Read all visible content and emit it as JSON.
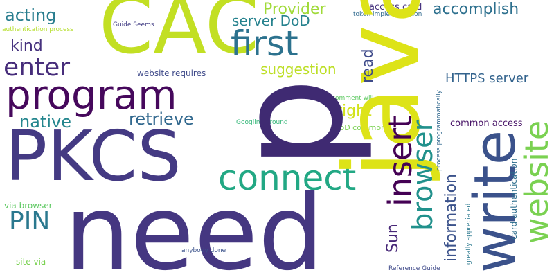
{
  "words": [
    {
      "text": "need",
      "color": "#453781"
    },
    {
      "text": "p",
      "color": "#3f2a72"
    },
    {
      "text": "CAC",
      "color": "#c2df23"
    },
    {
      "text": "java",
      "color": "#dde318"
    },
    {
      "text": "PKCS",
      "color": "#443a83"
    },
    {
      "text": "program",
      "color": "#46085c"
    },
    {
      "text": "write",
      "color": "#3b528b"
    },
    {
      "text": "first",
      "color": "#2c728e"
    },
    {
      "text": "connect",
      "color": "#22a884"
    },
    {
      "text": "website",
      "color": "#7ad151"
    },
    {
      "text": "insert",
      "color": "#440154"
    },
    {
      "text": "browser",
      "color": "#21918c"
    },
    {
      "text": "enter",
      "color": "#472d7b"
    },
    {
      "text": "acting",
      "color": "#287d8e"
    },
    {
      "text": "retrieve",
      "color": "#31688e"
    },
    {
      "text": "PIN",
      "color": "#2a788e"
    },
    {
      "text": "native",
      "color": "#24868e"
    },
    {
      "text": "kind",
      "color": "#46327e"
    },
    {
      "text": "Provider",
      "color": "#a0da39"
    },
    {
      "text": "accomplish",
      "color": "#2d708e"
    },
    {
      "text": "server DoD",
      "color": "#26828e"
    },
    {
      "text": "suggestion",
      "color": "#bddf26"
    },
    {
      "text": "read",
      "color": "#3e4a89"
    },
    {
      "text": "right",
      "color": "#d2e21b"
    },
    {
      "text": "HTTPS server",
      "color": "#33638d"
    },
    {
      "text": "Sun",
      "color": "#482878"
    },
    {
      "text": "information",
      "color": "#3b528b"
    },
    {
      "text": "common access",
      "color": "#481467"
    },
    {
      "text": "access card",
      "color": "#46327e"
    },
    {
      "text": "token implementation",
      "color": "#306a8e"
    },
    {
      "text": "authentication process",
      "color": "#b5de2b"
    },
    {
      "text": "Guide Seems",
      "color": "#433e85"
    },
    {
      "text": "website requires",
      "color": "#3e4989"
    },
    {
      "text": "Googling around",
      "color": "#35b779"
    },
    {
      "text": "comment will",
      "color": "#5ec962"
    },
    {
      "text": "DoD common",
      "color": "#7ad151"
    },
    {
      "text": "process programmatically",
      "color": "#31688e"
    },
    {
      "text": "card authentication",
      "color": "#2e6f8e"
    },
    {
      "text": "greatly appreciated",
      "color": "#2a788e"
    },
    {
      "text": "via browser",
      "color": "#5ec962"
    },
    {
      "text": "site via",
      "color": "#7ad151"
    },
    {
      "text": "anybody done",
      "color": "#3b528b"
    },
    {
      "text": "Reference Guide",
      "color": "#3e4989"
    }
  ]
}
